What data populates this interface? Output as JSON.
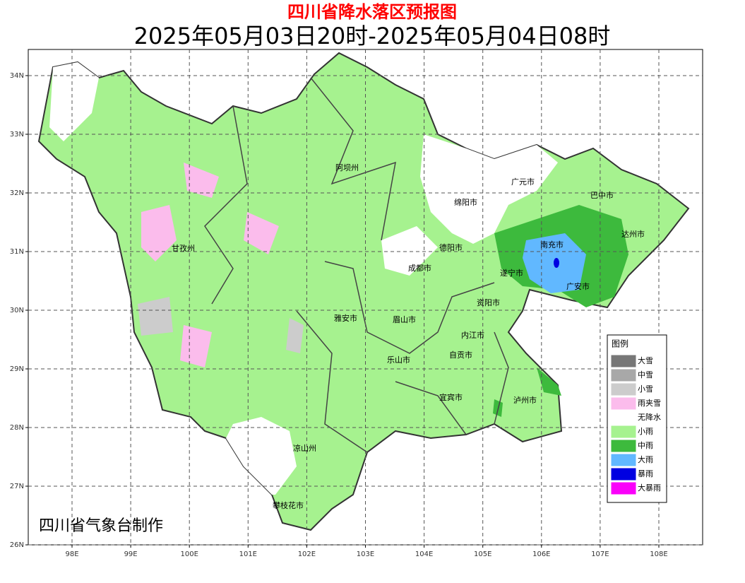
{
  "header": {
    "title": "四川省降水落区预报图",
    "subtitle": "2025年05月03日20时-2025年05月04日08时"
  },
  "map": {
    "lon_ticks": [
      {
        "value": 98,
        "label": "98E"
      },
      {
        "value": 99,
        "label": "99E"
      },
      {
        "value": 100,
        "label": "100E"
      },
      {
        "value": 101,
        "label": "101E"
      },
      {
        "value": 102,
        "label": "102E"
      },
      {
        "value": 103,
        "label": "103E"
      },
      {
        "value": 104,
        "label": "104E"
      },
      {
        "value": 105,
        "label": "105E"
      },
      {
        "value": 106,
        "label": "106E"
      },
      {
        "value": 107,
        "label": "107E"
      },
      {
        "value": 108,
        "label": "108E"
      }
    ],
    "lat_ticks": [
      {
        "value": 26,
        "label": "26N"
      },
      {
        "value": 27,
        "label": "27N"
      },
      {
        "value": 28,
        "label": "28N"
      },
      {
        "value": 29,
        "label": "29N"
      },
      {
        "value": 30,
        "label": "30N"
      },
      {
        "value": 31,
        "label": "31N"
      },
      {
        "value": 32,
        "label": "32N"
      },
      {
        "value": 33,
        "label": "33N"
      },
      {
        "value": 34,
        "label": "34N"
      }
    ],
    "cities": [
      "阿坝州",
      "广元市",
      "巴中市",
      "绵阳市",
      "达州市",
      "南充市",
      "德阳市",
      "甘孜州",
      "成都市",
      "遂宁市",
      "广安市",
      "资阳市",
      "雅安市",
      "眉山市",
      "内江市",
      "自贡市",
      "乐山市",
      "宜宾市",
      "泸州市",
      "凉山州",
      "攀枝花市"
    ]
  },
  "legend": {
    "title": "图例",
    "items": [
      {
        "label": "大雪",
        "color": "#777777"
      },
      {
        "label": "中雪",
        "color": "#a8a8a8"
      },
      {
        "label": "小雪",
        "color": "#cccccc"
      },
      {
        "label": "雨夹雪",
        "color": "#fbbcec"
      },
      {
        "label": "无降水",
        "color": "#ffffff"
      },
      {
        "label": "小雨",
        "color": "#a6f28f"
      },
      {
        "label": "中雨",
        "color": "#3dba3d"
      },
      {
        "label": "大雨",
        "color": "#61b8ff"
      },
      {
        "label": "暴雨",
        "color": "#0000e1"
      },
      {
        "label": "大暴雨",
        "color": "#fa00fa"
      }
    ]
  },
  "footer": "四川省气象台制作"
}
